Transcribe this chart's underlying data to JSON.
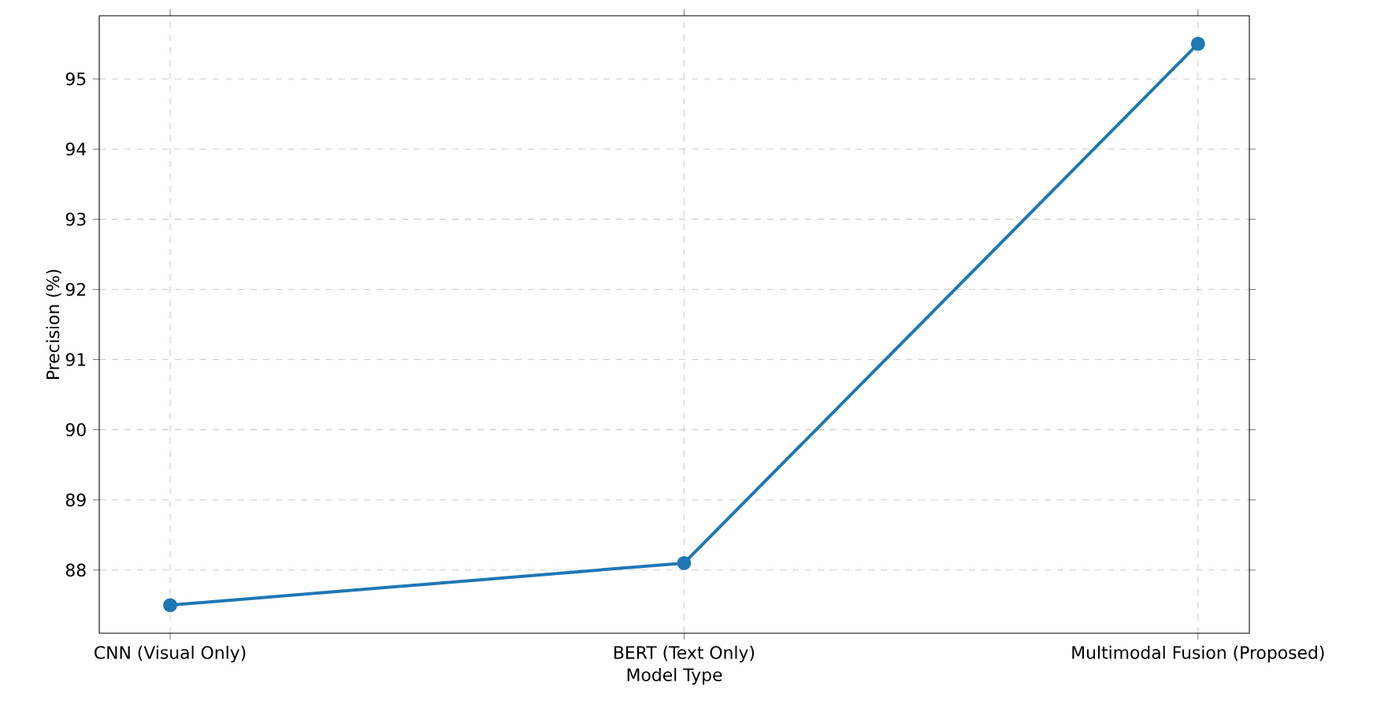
{
  "chart_data": {
    "type": "line",
    "xlabel": "Model Type",
    "ylabel": "Precision (%)",
    "categories": [
      "CNN (Visual Only)",
      "BERT (Text Only)",
      "Multimodal Fusion (Proposed)"
    ],
    "series": [
      {
        "color": "#1f77b4",
        "values": [
          87.5,
          88.1,
          95.5
        ]
      }
    ],
    "ylim": [
      87.1,
      95.9
    ],
    "yticks": [
      88,
      89,
      90,
      91,
      92,
      93,
      94,
      95
    ],
    "grid": true,
    "marker": "circle",
    "line_style": "solid"
  }
}
